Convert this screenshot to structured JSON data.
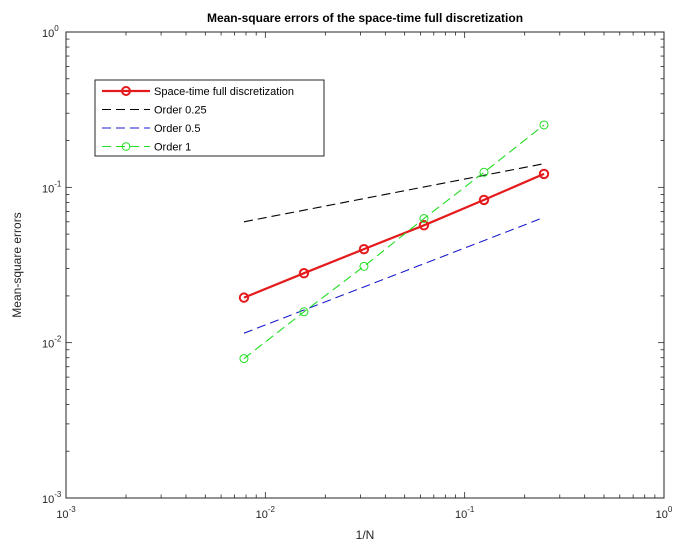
{
  "chart_data": {
    "type": "line",
    "title": "Mean-square errors of the space-time full discretization",
    "xlabel": "1/N",
    "ylabel": "Mean-square errors",
    "xscale": "log",
    "yscale": "log",
    "xlim": [
      0.001,
      1
    ],
    "ylim": [
      0.001,
      1
    ],
    "x_ticks": [
      {
        "value": 0.001,
        "base": "10",
        "exp": "-3"
      },
      {
        "value": 0.01,
        "base": "10",
        "exp": "-2"
      },
      {
        "value": 0.1,
        "base": "10",
        "exp": "-1"
      },
      {
        "value": 1,
        "base": "10",
        "exp": "0"
      }
    ],
    "y_ticks": [
      {
        "value": 0.001,
        "base": "10",
        "exp": "-3"
      },
      {
        "value": 0.01,
        "base": "10",
        "exp": "-2"
      },
      {
        "value": 0.1,
        "base": "10",
        "exp": "-1"
      },
      {
        "value": 1,
        "base": "10",
        "exp": "0"
      }
    ],
    "grid": false,
    "legend_position": "top-left",
    "series": [
      {
        "name": "Space-time full discretization",
        "color": "#e41a1c",
        "line_style": "solid",
        "marker": "circle",
        "x": [
          0.0078125,
          0.015625,
          0.03125,
          0.0625,
          0.125,
          0.25
        ],
        "y": [
          0.0195,
          0.028,
          0.04,
          0.057,
          0.083,
          0.122
        ]
      },
      {
        "name": "Order 0.25",
        "color": "#000000",
        "line_style": "dashed",
        "marker": "none",
        "x": [
          0.0078125,
          0.25
        ],
        "y": [
          0.06,
          0.142
        ]
      },
      {
        "name": "Order 0.5",
        "color": "#1a1acc",
        "line_style": "dashed",
        "marker": "none",
        "x": [
          0.0078125,
          0.25
        ],
        "y": [
          0.0115,
          0.064
        ]
      },
      {
        "name": "Order 1",
        "color": "#22dd22",
        "line_style": "dashed",
        "marker": "circle",
        "x": [
          0.0078125,
          0.015625,
          0.03125,
          0.0625,
          0.125,
          0.25
        ],
        "y": [
          0.0079,
          0.0158,
          0.031,
          0.063,
          0.125,
          0.252
        ]
      }
    ]
  }
}
